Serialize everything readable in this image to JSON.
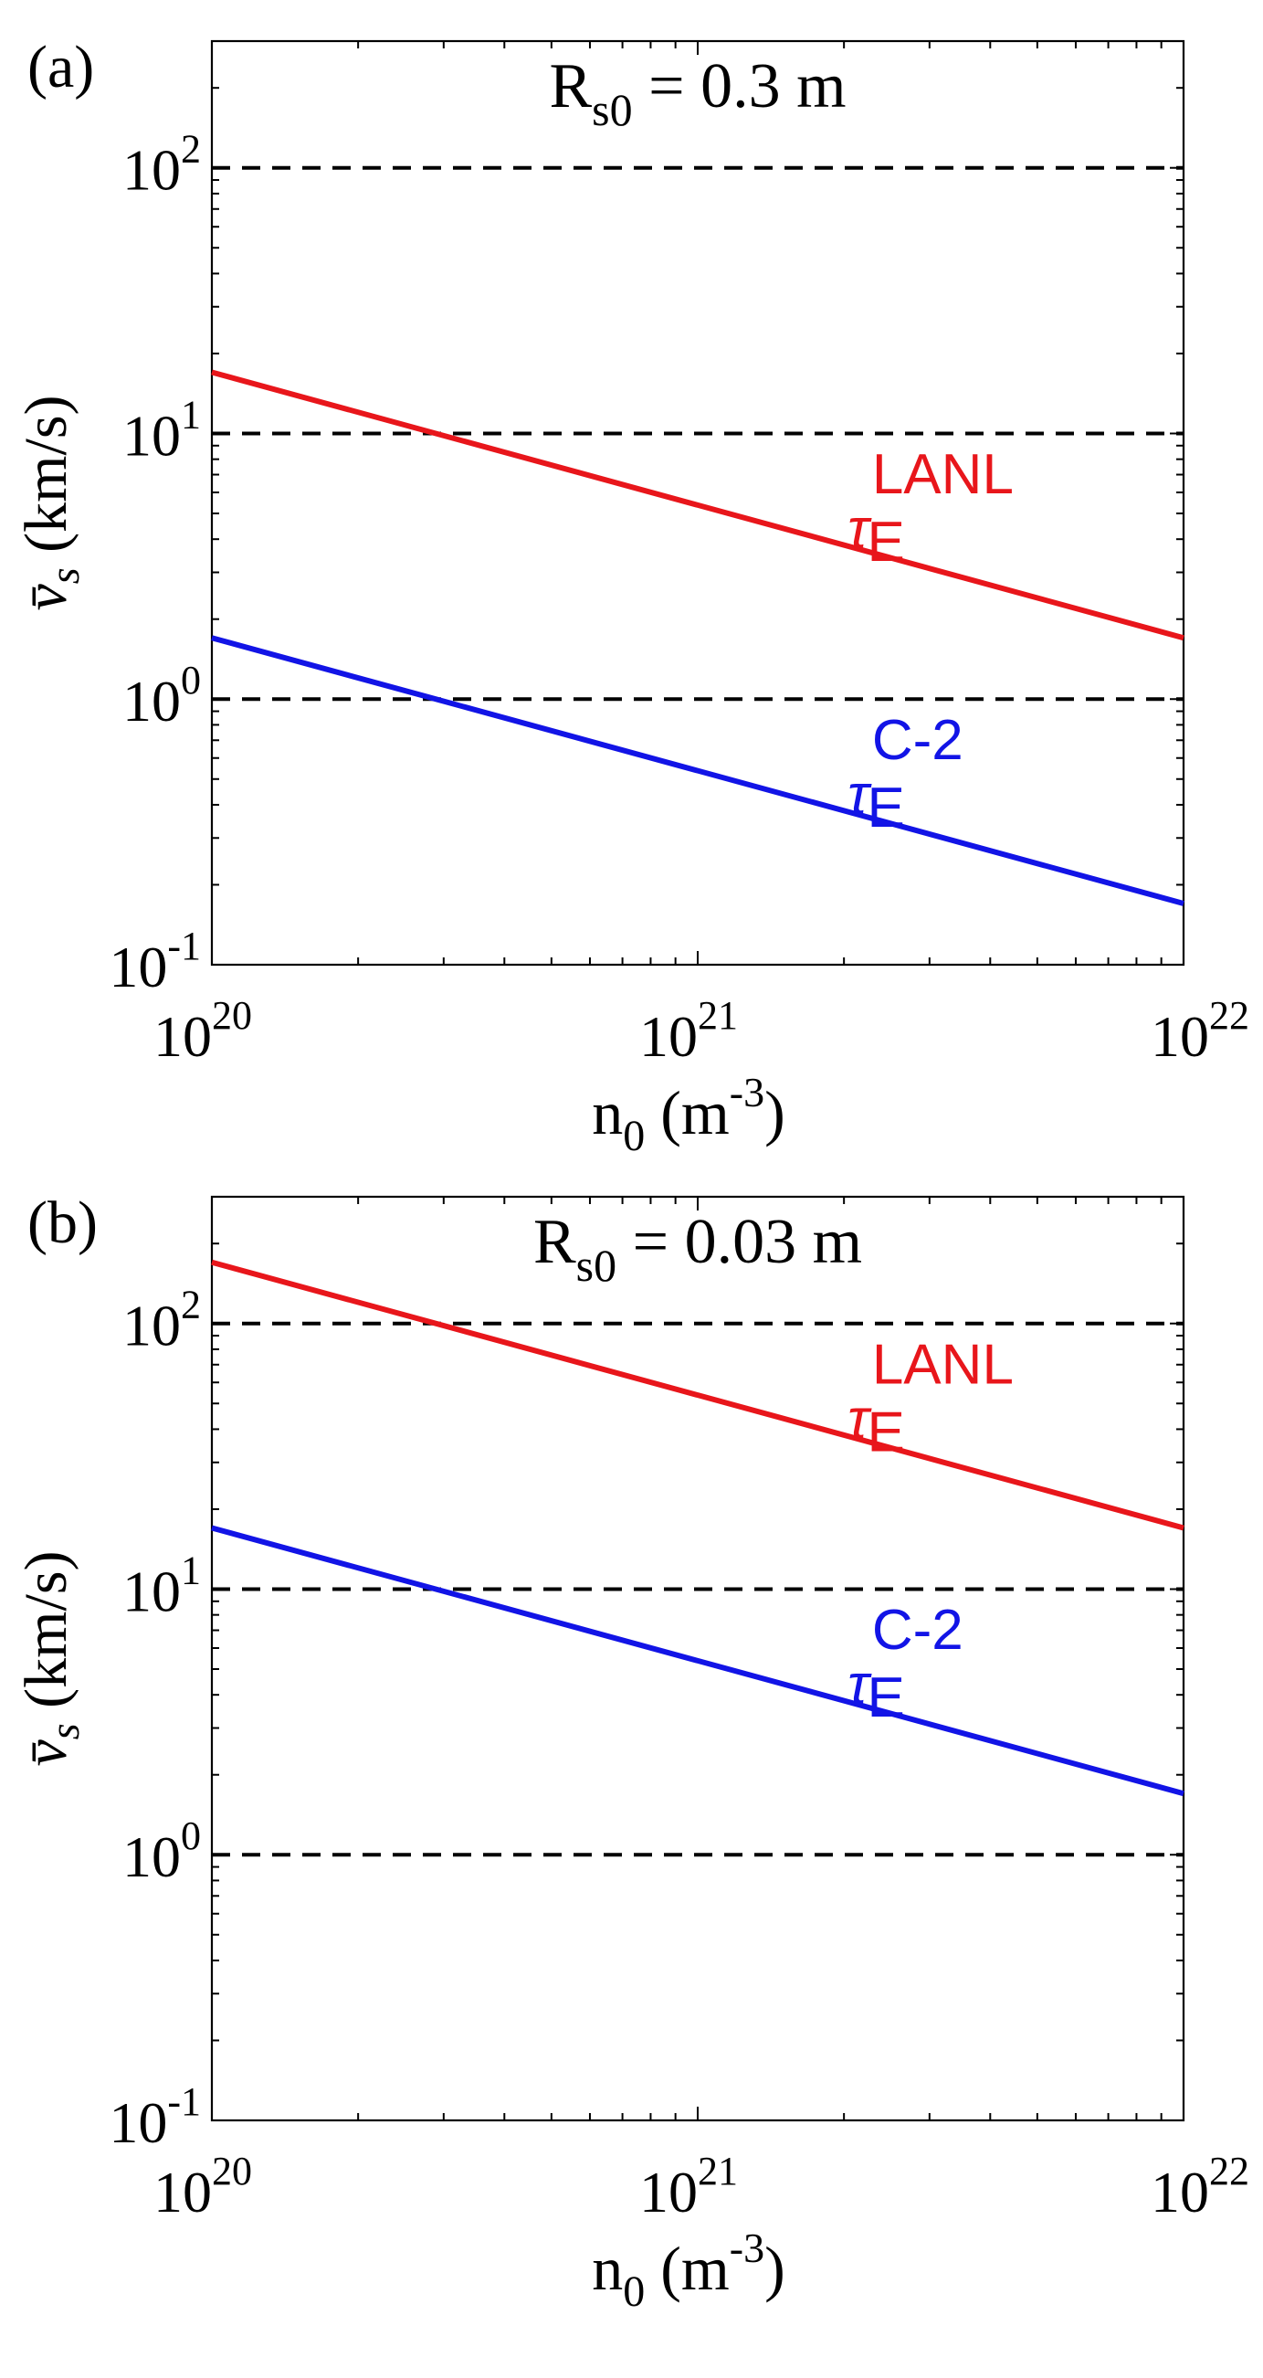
{
  "chart_data": [
    {
      "type": "line",
      "panel_label": "(a)",
      "title_main": "R",
      "title_sub": "s0",
      "title_rest": " = 0.3 m",
      "x_scale": "log",
      "y_scale": "log",
      "xlim": [
        1e+20,
        1e+22
      ],
      "ylim": [
        0.1,
        300
      ],
      "xticks": [
        {
          "value": 1e+20,
          "base": "10",
          "exp": "20"
        },
        {
          "value": 1e+21,
          "base": "10",
          "exp": "21"
        },
        {
          "value": 1e+22,
          "base": "10",
          "exp": "22"
        }
      ],
      "yticks": [
        {
          "value": 0.1,
          "base": "10",
          "exp": "-1"
        },
        {
          "value": 1,
          "base": "10",
          "exp": "0"
        },
        {
          "value": 10,
          "base": "10",
          "exp": "1"
        },
        {
          "value": 100,
          "base": "10",
          "exp": "2"
        }
      ],
      "xlabel": {
        "main": "n",
        "sub": "0",
        "unit_open": " (m",
        "unit_exp": "-3",
        "unit_close": ")"
      },
      "ylabel": {
        "symbol": "v̄",
        "sub": "s",
        "unit": " (km/s)"
      },
      "hlines": [
        1,
        10,
        100
      ],
      "series": [
        {
          "name": "LANL",
          "tau": "τ",
          "sub": "E",
          "sup": "LANL",
          "color": "#e8161b",
          "x": [
            1e+20,
            1e+22
          ],
          "y": [
            17,
            1.7
          ],
          "label_at_x": 2.4e+21
        },
        {
          "name": "C-2",
          "tau": "τ",
          "sub": "E",
          "sup": "C-2",
          "color": "#1214e6",
          "x": [
            1e+20,
            1e+22
          ],
          "y": [
            1.7,
            0.17
          ],
          "label_at_x": 2.4e+21
        }
      ]
    },
    {
      "type": "line",
      "panel_label": "(b)",
      "title_main": "R",
      "title_sub": "s0",
      "title_rest": " = 0.03 m",
      "x_scale": "log",
      "y_scale": "log",
      "xlim": [
        1e+20,
        1e+22
      ],
      "ylim": [
        0.1,
        300
      ],
      "xticks": [
        {
          "value": 1e+20,
          "base": "10",
          "exp": "20"
        },
        {
          "value": 1e+21,
          "base": "10",
          "exp": "21"
        },
        {
          "value": 1e+22,
          "base": "10",
          "exp": "22"
        }
      ],
      "yticks": [
        {
          "value": 0.1,
          "base": "10",
          "exp": "-1"
        },
        {
          "value": 1,
          "base": "10",
          "exp": "0"
        },
        {
          "value": 10,
          "base": "10",
          "exp": "1"
        },
        {
          "value": 100,
          "base": "10",
          "exp": "2"
        }
      ],
      "xlabel": {
        "main": "n",
        "sub": "0",
        "unit_open": " (m",
        "unit_exp": "-3",
        "unit_close": ")"
      },
      "ylabel": {
        "symbol": "v̄",
        "sub": "s",
        "unit": " (km/s)"
      },
      "hlines": [
        1,
        10,
        100
      ],
      "series": [
        {
          "name": "LANL",
          "tau": "τ",
          "sub": "E",
          "sup": "LANL",
          "color": "#e8161b",
          "x": [
            1e+20,
            1e+22
          ],
          "y": [
            170,
            17
          ],
          "label_at_x": 2.4e+21
        },
        {
          "name": "C-2",
          "tau": "τ",
          "sub": "E",
          "sup": "C-2",
          "color": "#1214e6",
          "x": [
            1e+20,
            1e+22
          ],
          "y": [
            17,
            1.7
          ],
          "label_at_x": 2.4e+21
        }
      ]
    }
  ]
}
